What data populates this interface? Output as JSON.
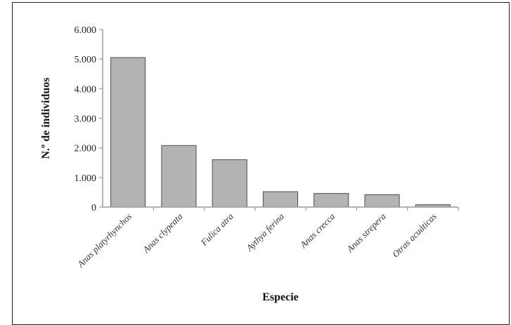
{
  "chart_data": {
    "type": "bar",
    "xlabel": "Especie",
    "ylabel": "N.º de individuos",
    "ylim": [
      0,
      6000
    ],
    "yticks": [
      "0",
      "1.000",
      "2.000",
      "3.000",
      "4.000",
      "5.000",
      "6.000"
    ],
    "categories": [
      "Anas platyrhynchos",
      "Anas clypeata",
      "Fulica atra",
      "Aythya ferina",
      "Anas crecca",
      "Anas strepera",
      "Otras acuáticas"
    ],
    "values": [
      5050,
      2080,
      1600,
      520,
      460,
      420,
      80
    ],
    "grid": false,
    "legend": "none",
    "colors": {
      "bar": "#b3b3b3",
      "bar_stroke": "#4d4d4d",
      "axis": "#9a9a9a"
    }
  }
}
